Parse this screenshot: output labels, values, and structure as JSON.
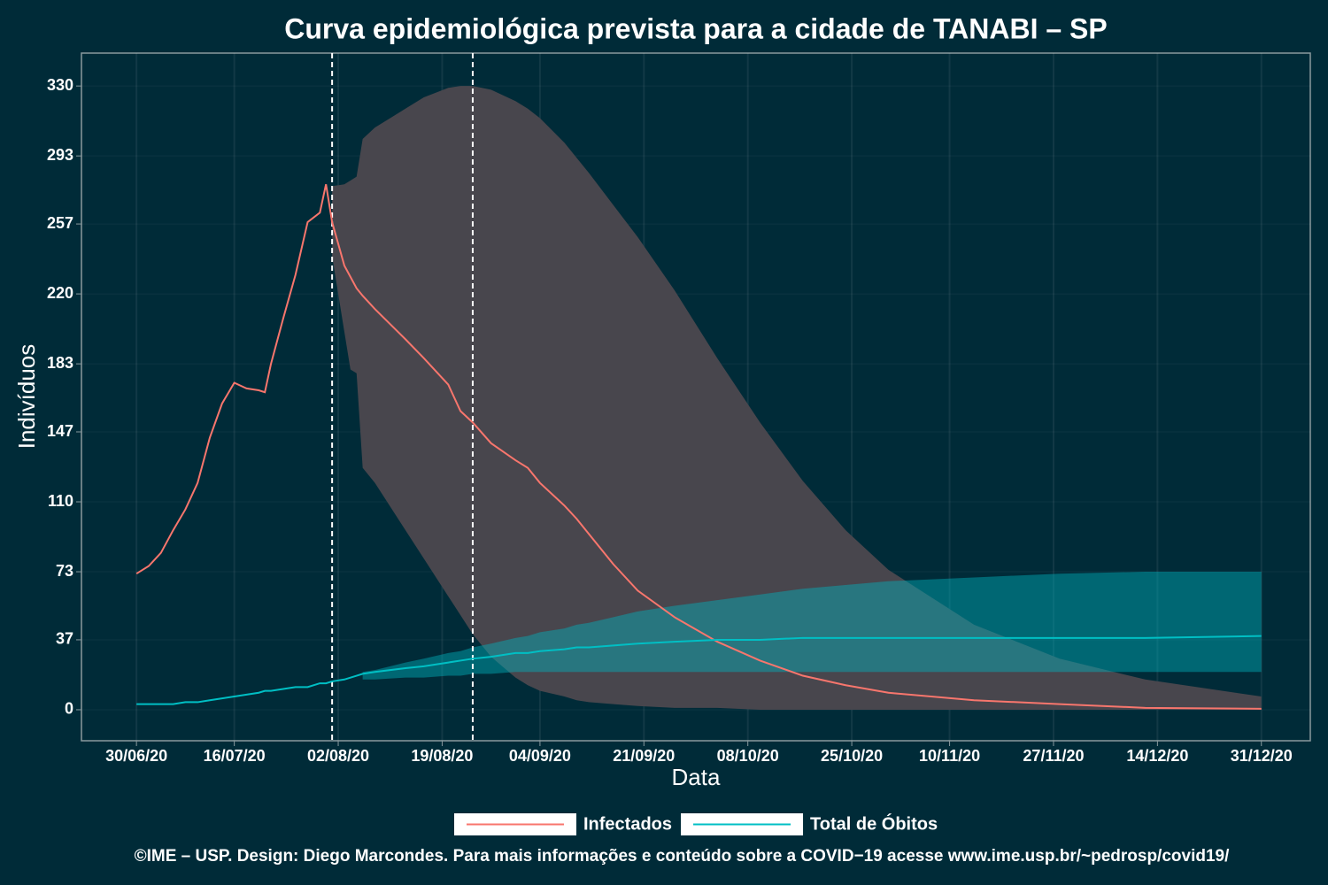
{
  "chart_data": {
    "type": "line",
    "title": "Curva epidemiológica prevista para a cidade de TANABI – SP",
    "xlabel": "Data",
    "ylabel": "Indivíduos",
    "caption": "©IME – USP. Design: Diego Marcondes. Para mais informações e conteúdo sobre a COVID−19 acesse www.ime.usp.br/~pedrosp/covid19/",
    "x": [
      "30/06/20",
      "02/07/20",
      "04/07/20",
      "06/07/20",
      "08/07/20",
      "10/07/20",
      "12/07/20",
      "14/07/20",
      "16/07/20",
      "18/07/20",
      "20/07/20",
      "21/07/20",
      "22/07/20",
      "24/07/20",
      "26/07/20",
      "28/07/20",
      "30/07/20",
      "31/07/20",
      "01/08/20",
      "03/08/20",
      "04/08/20",
      "05/08/20",
      "06/08/20",
      "08/08/20",
      "13/08/20",
      "16/08/20",
      "20/08/20",
      "22/08/20",
      "24/08/20",
      "27/08/20",
      "31/08/20",
      "02/09/20",
      "04/09/20",
      "08/09/20",
      "10/09/20",
      "12/09/20",
      "16/09/20",
      "20/09/20",
      "26/09/20",
      "03/10/20",
      "10/10/20",
      "17/10/20",
      "24/10/20",
      "31/10/20",
      "14/11/20",
      "28/11/20",
      "12/12/20",
      "31/12/20"
    ],
    "series": [
      {
        "name": "Infectados",
        "color": "#f8766d",
        "values": [
          72,
          76,
          83,
          95,
          106,
          120,
          144,
          162,
          173,
          170,
          169,
          168,
          183,
          207,
          230,
          258,
          263,
          278,
          258,
          235,
          229,
          223,
          219,
          212,
          196,
          186,
          172,
          158,
          152,
          141,
          132,
          128,
          120,
          108,
          101,
          93,
          77,
          63,
          49,
          36,
          26,
          18,
          13,
          9,
          5,
          3,
          1,
          0.5
        ],
        "band_color": "#48464d",
        "band_lower": [
          null,
          null,
          null,
          null,
          null,
          null,
          null,
          null,
          null,
          null,
          null,
          null,
          null,
          null,
          null,
          null,
          null,
          null,
          240,
          200,
          180,
          178,
          128,
          120,
          95,
          80,
          60,
          50,
          40,
          28,
          17,
          13,
          10,
          7,
          5,
          4,
          3,
          2,
          1,
          1,
          0,
          0,
          0,
          0,
          0,
          0,
          0,
          0
        ],
        "band_upper": [
          null,
          null,
          null,
          null,
          null,
          null,
          null,
          null,
          null,
          null,
          null,
          null,
          null,
          null,
          null,
          null,
          null,
          null,
          277,
          278,
          280,
          282,
          302,
          308,
          318,
          324,
          329,
          330,
          330,
          328,
          322,
          318,
          313,
          300,
          292,
          284,
          267,
          250,
          222,
          186,
          152,
          121,
          95,
          74,
          45,
          27,
          16,
          7
        ]
      },
      {
        "name": "Total de Óbitos",
        "color": "#00bfc4",
        "values": [
          3,
          3,
          3,
          3,
          4,
          4,
          5,
          6,
          7,
          8,
          9,
          10,
          10,
          11,
          12,
          12,
          14,
          14,
          15,
          16,
          17,
          18,
          19,
          20,
          22,
          23,
          25,
          26,
          27,
          28,
          30,
          30,
          31,
          32,
          33,
          33,
          34,
          35,
          36,
          37,
          37,
          38,
          38,
          38,
          38,
          38,
          38,
          39
        ],
        "band_color": "#00b5c070",
        "band_lower": [
          null,
          null,
          null,
          null,
          null,
          null,
          null,
          null,
          null,
          null,
          null,
          null,
          null,
          null,
          null,
          null,
          null,
          null,
          null,
          null,
          null,
          null,
          16,
          16,
          17,
          17,
          18,
          18,
          19,
          19,
          20,
          20,
          20,
          20,
          20,
          20,
          20,
          20,
          20,
          20,
          20,
          20,
          20,
          20,
          20,
          20,
          20,
          20
        ],
        "band_upper": [
          null,
          null,
          null,
          null,
          null,
          null,
          null,
          null,
          null,
          null,
          null,
          null,
          null,
          null,
          null,
          null,
          null,
          null,
          null,
          null,
          null,
          null,
          20,
          21,
          25,
          27,
          30,
          31,
          33,
          35,
          38,
          39,
          41,
          43,
          45,
          46,
          49,
          52,
          55,
          58,
          61,
          64,
          66,
          68,
          70,
          72,
          73,
          73
        ]
      }
    ],
    "vlines": [
      "01/08/20",
      "24/08/20"
    ],
    "xlim": [
      "21/06/20",
      "08/01/21"
    ],
    "xticks": [
      "30/06/20",
      "16/07/20",
      "02/08/20",
      "19/08/20",
      "04/09/20",
      "21/09/20",
      "08/10/20",
      "25/10/20",
      "10/11/20",
      "27/11/20",
      "14/12/20",
      "31/12/20"
    ],
    "ylim": [
      -16.4,
      347.4
    ],
    "yticks": [
      0,
      37,
      73,
      110,
      147,
      183,
      220,
      257,
      293,
      330
    ],
    "grid": true
  }
}
